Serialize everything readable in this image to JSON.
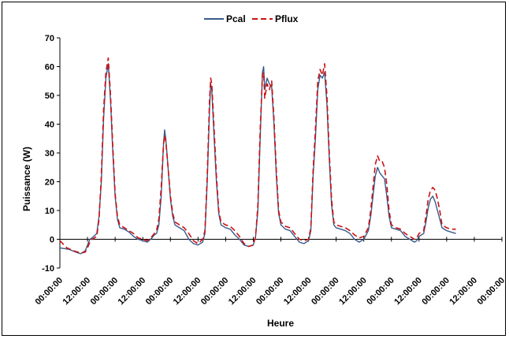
{
  "chart_data": {
    "type": "line",
    "title": "",
    "xlabel": "Heure",
    "ylabel": "Puissance (W)",
    "ylim": [
      -10,
      70
    ],
    "yticks": [
      -10,
      0,
      10,
      20,
      30,
      40,
      50,
      60,
      70
    ],
    "xlim_hours": [
      0,
      192
    ],
    "x_tick_labels": [
      "00:00:00",
      "12:00:00",
      "00:00:00",
      "12:00:00",
      "00:00:00",
      "12:00:00",
      "00:00:00",
      "12:00:00",
      "00:00:00",
      "12:00:00",
      "00:00:00",
      "12:00:00",
      "00:00:00",
      "12:00:00",
      "00:00:00",
      "12:00:00",
      "00:00:00"
    ],
    "legend": {
      "placement": "top-center"
    },
    "grid": false,
    "series": [
      {
        "name": "Pcal",
        "color": "#3a5a8c",
        "style": "solid",
        "points": [
          [
            0,
            -3
          ],
          [
            4,
            -3.5
          ],
          [
            7,
            -4.5
          ],
          [
            9,
            -5
          ],
          [
            11,
            -4
          ],
          [
            12,
            -2
          ],
          [
            13,
            0
          ],
          [
            14,
            0.5
          ],
          [
            16,
            2
          ],
          [
            17,
            8
          ],
          [
            18,
            20
          ],
          [
            19,
            42
          ],
          [
            20,
            56
          ],
          [
            21,
            61
          ],
          [
            22,
            48
          ],
          [
            23,
            30
          ],
          [
            24,
            15
          ],
          [
            25,
            7
          ],
          [
            26,
            4
          ],
          [
            28,
            3.5
          ],
          [
            30,
            2.5
          ],
          [
            32,
            1
          ],
          [
            34,
            0
          ],
          [
            36,
            -0.5
          ],
          [
            38,
            -1
          ],
          [
            40,
            0.5
          ],
          [
            41,
            1.5
          ],
          [
            42,
            2
          ],
          [
            43,
            5
          ],
          [
            44,
            15
          ],
          [
            45,
            33
          ],
          [
            45.5,
            38
          ],
          [
            46,
            35
          ],
          [
            47,
            25
          ],
          [
            48,
            14
          ],
          [
            49,
            8
          ],
          [
            50,
            5
          ],
          [
            52,
            4
          ],
          [
            54,
            3
          ],
          [
            56,
            0
          ],
          [
            58,
            -1.5
          ],
          [
            60,
            -2
          ],
          [
            62,
            -1
          ],
          [
            63,
            2
          ],
          [
            64,
            20
          ],
          [
            65,
            45
          ],
          [
            65.5,
            54
          ],
          [
            66,
            52
          ],
          [
            67,
            35
          ],
          [
            68,
            20
          ],
          [
            69,
            9
          ],
          [
            70,
            5
          ],
          [
            72,
            4
          ],
          [
            74,
            3.5
          ],
          [
            76,
            1.5
          ],
          [
            78,
            0
          ],
          [
            80,
            -2
          ],
          [
            82,
            -2.5
          ],
          [
            84,
            -2
          ],
          [
            85,
            1
          ],
          [
            86,
            10
          ],
          [
            87,
            35
          ],
          [
            88,
            58
          ],
          [
            88.5,
            60
          ],
          [
            89,
            52
          ],
          [
            90,
            56
          ],
          [
            91,
            54
          ],
          [
            92,
            53
          ],
          [
            93,
            40
          ],
          [
            94,
            22
          ],
          [
            95,
            9
          ],
          [
            96,
            5
          ],
          [
            98,
            3.5
          ],
          [
            100,
            3
          ],
          [
            102,
            1
          ],
          [
            104,
            -1
          ],
          [
            106,
            -1.5
          ],
          [
            108,
            -0.5
          ],
          [
            109,
            3
          ],
          [
            110,
            22
          ],
          [
            111,
            35
          ],
          [
            112,
            52
          ],
          [
            113,
            57
          ],
          [
            114,
            56
          ],
          [
            115,
            58
          ],
          [
            116,
            47
          ],
          [
            117,
            28
          ],
          [
            118,
            12
          ],
          [
            119,
            5
          ],
          [
            120,
            4
          ],
          [
            122,
            3.5
          ],
          [
            124,
            3
          ],
          [
            126,
            2
          ],
          [
            128,
            0
          ],
          [
            130,
            -1
          ],
          [
            132,
            0
          ],
          [
            134,
            3
          ],
          [
            135,
            8
          ],
          [
            136,
            15
          ],
          [
            137,
            22
          ],
          [
            138,
            25
          ],
          [
            139,
            23
          ],
          [
            140,
            22
          ],
          [
            141,
            21
          ],
          [
            142,
            15
          ],
          [
            143,
            8
          ],
          [
            144,
            4
          ],
          [
            146,
            3.5
          ],
          [
            148,
            3
          ],
          [
            150,
            1
          ],
          [
            152,
            0
          ],
          [
            154,
            -1
          ],
          [
            155,
            -0.5
          ],
          [
            156,
            1
          ],
          [
            158,
            2
          ],
          [
            159,
            6
          ],
          [
            160,
            11
          ],
          [
            161,
            14
          ],
          [
            162,
            15
          ],
          [
            163,
            13
          ],
          [
            164,
            10
          ],
          [
            165,
            7
          ],
          [
            166,
            4
          ],
          [
            168,
            3
          ],
          [
            170,
            2.5
          ],
          [
            172,
            2
          ]
        ]
      },
      {
        "name": "Pflux",
        "color": "#cc1111",
        "style": "dashed",
        "points": [
          [
            0,
            -0.5
          ],
          [
            3,
            -3
          ],
          [
            6,
            -4
          ],
          [
            9,
            -4.8
          ],
          [
            11,
            -4.5
          ],
          [
            12,
            -3
          ],
          [
            13,
            -1
          ],
          [
            14,
            0
          ],
          [
            16,
            1
          ],
          [
            17,
            7
          ],
          [
            18,
            22
          ],
          [
            19,
            45
          ],
          [
            20,
            58
          ],
          [
            21,
            63
          ],
          [
            22,
            50
          ],
          [
            23,
            32
          ],
          [
            24,
            16
          ],
          [
            25,
            8
          ],
          [
            26,
            5
          ],
          [
            28,
            4
          ],
          [
            30,
            3
          ],
          [
            32,
            2
          ],
          [
            34,
            0.5
          ],
          [
            36,
            0
          ],
          [
            38,
            -0.5
          ],
          [
            40,
            1
          ],
          [
            41,
            2
          ],
          [
            42,
            3
          ],
          [
            43,
            7
          ],
          [
            44,
            18
          ],
          [
            45,
            33
          ],
          [
            45.5,
            36
          ],
          [
            46,
            34
          ],
          [
            47,
            25
          ],
          [
            48,
            15
          ],
          [
            49,
            9
          ],
          [
            50,
            6
          ],
          [
            52,
            5
          ],
          [
            54,
            4
          ],
          [
            56,
            2
          ],
          [
            58,
            -0.5
          ],
          [
            60,
            -1.5
          ],
          [
            62,
            0
          ],
          [
            63,
            3
          ],
          [
            64,
            22
          ],
          [
            65,
            48
          ],
          [
            65.5,
            56
          ],
          [
            66,
            54
          ],
          [
            67,
            38
          ],
          [
            68,
            22
          ],
          [
            69,
            10
          ],
          [
            70,
            6
          ],
          [
            72,
            5
          ],
          [
            74,
            4.5
          ],
          [
            76,
            3
          ],
          [
            78,
            1
          ],
          [
            80,
            -1.5
          ],
          [
            82,
            -2.5
          ],
          [
            84,
            -2
          ],
          [
            85,
            1
          ],
          [
            86,
            12
          ],
          [
            87,
            38
          ],
          [
            88,
            57
          ],
          [
            88.5,
            58
          ],
          [
            89,
            49
          ],
          [
            90,
            54
          ],
          [
            91,
            52
          ],
          [
            92,
            55
          ],
          [
            93,
            42
          ],
          [
            94,
            24
          ],
          [
            95,
            10
          ],
          [
            96,
            6
          ],
          [
            98,
            4.5
          ],
          [
            100,
            4
          ],
          [
            102,
            2
          ],
          [
            104,
            0
          ],
          [
            106,
            -0.5
          ],
          [
            108,
            0
          ],
          [
            109,
            4
          ],
          [
            110,
            24
          ],
          [
            111,
            38
          ],
          [
            112,
            55
          ],
          [
            113,
            59
          ],
          [
            114,
            57
          ],
          [
            115,
            61
          ],
          [
            116,
            50
          ],
          [
            117,
            30
          ],
          [
            118,
            14
          ],
          [
            119,
            6
          ],
          [
            120,
            5
          ],
          [
            122,
            4.5
          ],
          [
            124,
            4
          ],
          [
            126,
            3
          ],
          [
            128,
            1.5
          ],
          [
            130,
            0.5
          ],
          [
            132,
            1
          ],
          [
            134,
            4
          ],
          [
            135,
            10
          ],
          [
            136,
            18
          ],
          [
            137,
            26
          ],
          [
            138,
            29
          ],
          [
            139,
            27
          ],
          [
            140,
            27
          ],
          [
            141,
            25
          ],
          [
            142,
            19
          ],
          [
            143,
            10
          ],
          [
            144,
            5
          ],
          [
            146,
            4
          ],
          [
            148,
            3.5
          ],
          [
            150,
            2
          ],
          [
            152,
            1
          ],
          [
            154,
            0
          ],
          [
            155,
            0.5
          ],
          [
            156,
            2
          ],
          [
            158,
            3
          ],
          [
            159,
            8
          ],
          [
            160,
            14
          ],
          [
            161,
            17
          ],
          [
            162,
            18
          ],
          [
            163,
            17
          ],
          [
            164,
            14
          ],
          [
            165,
            10
          ],
          [
            166,
            5
          ],
          [
            168,
            4
          ],
          [
            170,
            3.5
          ],
          [
            172,
            3.5
          ]
        ]
      }
    ]
  }
}
